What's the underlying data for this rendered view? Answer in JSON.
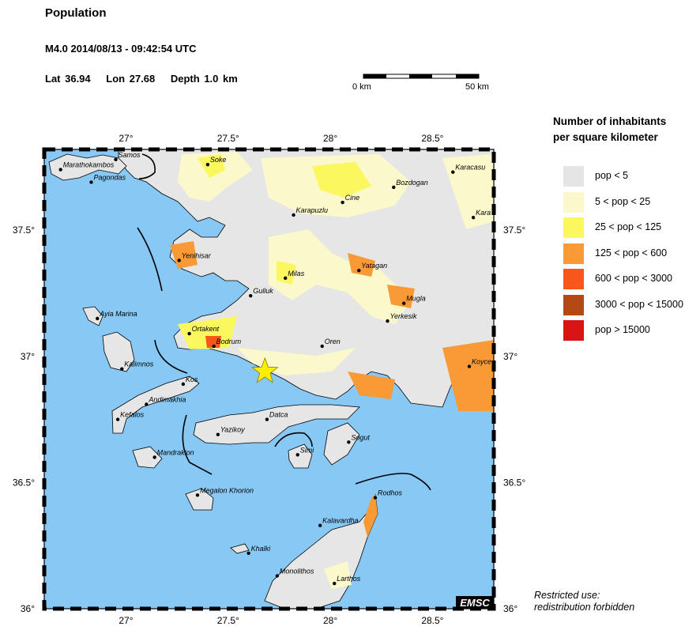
{
  "header": {
    "title": "Population",
    "event": "M4.0  2014/08/13 - 09:42:54 UTC",
    "lat": "Lat 36.94",
    "lon": "Lon  27.68",
    "depth": "Depth  1.0 km"
  },
  "scale_bar": {
    "start_label": "0 km",
    "end_label": "50 km"
  },
  "map": {
    "lon_min": 26.6,
    "lon_max": 28.8,
    "lat_min": 36.0,
    "lat_max": 37.82,
    "x_ticks": [
      "27°",
      "27.5°",
      "28°",
      "28.5°"
    ],
    "x_tick_values": [
      27.0,
      27.5,
      28.0,
      28.5
    ],
    "y_ticks": [
      "36°",
      "36.5°",
      "37°",
      "37.5°"
    ],
    "y_tick_values": [
      36.0,
      36.5,
      37.0,
      37.5
    ],
    "epicenter": {
      "lat": 36.94,
      "lon": 27.68
    },
    "watermark": "EMSC",
    "colors": {
      "sea": "#88c8f4",
      "land": "#e6e6e6",
      "epicenter": "#ffee00"
    },
    "places": [
      {
        "name": "Samos",
        "lat": 37.78,
        "lon": 26.95
      },
      {
        "name": "Soke",
        "lat": 37.76,
        "lon": 27.4
      },
      {
        "name": "Karacasu",
        "lat": 37.73,
        "lon": 28.6
      },
      {
        "name": "Marathokambos",
        "lat": 37.74,
        "lon": 26.68
      },
      {
        "name": "Pagondas",
        "lat": 37.69,
        "lon": 26.83
      },
      {
        "name": "Bozdogan",
        "lat": 37.67,
        "lon": 28.31
      },
      {
        "name": "Cine",
        "lat": 37.61,
        "lon": 28.06
      },
      {
        "name": "Karapuzlu",
        "lat": 37.56,
        "lon": 27.82
      },
      {
        "name": "Kara",
        "lat": 37.55,
        "lon": 28.7
      },
      {
        "name": "Yenihisar",
        "lat": 37.38,
        "lon": 27.26
      },
      {
        "name": "Yatagan",
        "lat": 37.34,
        "lon": 28.14
      },
      {
        "name": "Milas",
        "lat": 37.31,
        "lon": 27.78
      },
      {
        "name": "Gulluk",
        "lat": 37.24,
        "lon": 27.61
      },
      {
        "name": "Mugla",
        "lat": 37.21,
        "lon": 28.36
      },
      {
        "name": "Ayia Marina",
        "lat": 37.15,
        "lon": 26.86
      },
      {
        "name": "Yerkesik",
        "lat": 37.14,
        "lon": 28.28
      },
      {
        "name": "Ortakent",
        "lat": 37.09,
        "lon": 27.31
      },
      {
        "name": "Bodrum",
        "lat": 37.04,
        "lon": 27.43
      },
      {
        "name": "Oren",
        "lat": 37.04,
        "lon": 27.96
      },
      {
        "name": "Koyce",
        "lat": 36.96,
        "lon": 28.68
      },
      {
        "name": "Kalimnos",
        "lat": 36.95,
        "lon": 26.98
      },
      {
        "name": "Kos",
        "lat": 36.89,
        "lon": 27.28
      },
      {
        "name": "Andimakhia",
        "lat": 36.81,
        "lon": 27.1
      },
      {
        "name": "Kefalos",
        "lat": 36.75,
        "lon": 26.96
      },
      {
        "name": "Datca",
        "lat": 36.75,
        "lon": 27.69
      },
      {
        "name": "Sogut",
        "lat": 36.66,
        "lon": 28.09
      },
      {
        "name": "Yazikoy",
        "lat": 36.69,
        "lon": 27.45
      },
      {
        "name": "Simi",
        "lat": 36.61,
        "lon": 27.84
      },
      {
        "name": "Mandrakion",
        "lat": 36.6,
        "lon": 27.14
      },
      {
        "name": "Megalon Khorion",
        "lat": 36.45,
        "lon": 27.35
      },
      {
        "name": "Rodhos",
        "lat": 36.44,
        "lon": 28.22
      },
      {
        "name": "Kalavardha",
        "lat": 36.33,
        "lon": 27.95
      },
      {
        "name": "Khalki",
        "lat": 36.22,
        "lon": 27.6
      },
      {
        "name": "Monolithos",
        "lat": 36.13,
        "lon": 27.74
      },
      {
        "name": "Larthos",
        "lat": 36.1,
        "lon": 28.02
      }
    ]
  },
  "legend": {
    "title_line1": "Number of inhabitants",
    "title_line2": "per square kilometer",
    "items": [
      {
        "label": "pop < 5",
        "color": "#e5e5e5"
      },
      {
        "label": "5 < pop < 25",
        "color": "#fbf9cb"
      },
      {
        "label": "25 < pop < 125",
        "color": "#fbf75f"
      },
      {
        "label": "125 < pop < 600",
        "color": "#fa9a36"
      },
      {
        "label": "600 < pop < 3000",
        "color": "#f9561b"
      },
      {
        "label": "3000 < pop < 15000",
        "color": "#b54914"
      },
      {
        "label": "pop > 15000",
        "color": "#d81414"
      }
    ]
  },
  "notice": {
    "line1": "Restricted use:",
    "line2": "redistribution forbidden"
  }
}
